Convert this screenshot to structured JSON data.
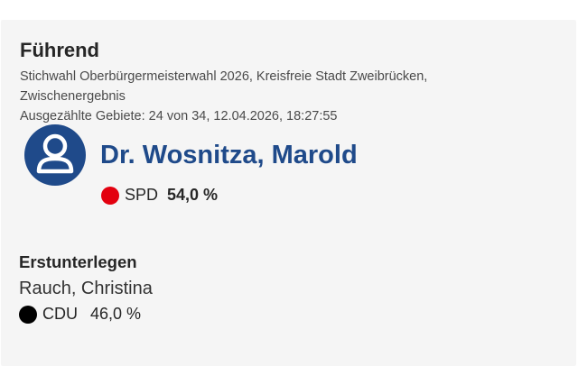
{
  "result_card": {
    "heading": "Führend",
    "subtitle_line1": "Stichwahl Oberbürgermeisterwahl 2026, Kreisfreie Stadt Zweibrücken, Zwischenergebnis",
    "subtitle_line2": "Ausgezählte Gebiete: 24 von 34, 12.04.2026, 18:27:55",
    "winner": {
      "name": "Dr. Wosnitza, Marold",
      "party": "SPD",
      "percent": "54,0 %",
      "party_color": "#e3000f",
      "avatar_icon": "user-avatar-icon",
      "avatar_color": "#1f4a8a"
    },
    "runner_up": {
      "heading": "Erstunterlegen",
      "name": "Rauch, Christina",
      "party": "CDU",
      "percent": "46,0 %",
      "party_color": "#000000"
    }
  }
}
